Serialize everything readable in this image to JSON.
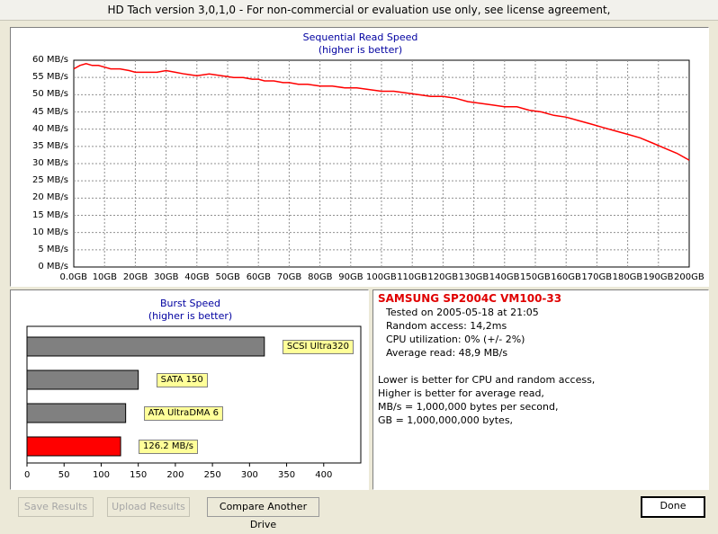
{
  "window": {
    "title": "HD Tach version 3,0,1,0  - For non-commercial or evaluation use only, see license agreement,"
  },
  "sequential": {
    "title": "Sequential Read Speed",
    "subtitle": "(higher is better)",
    "color": "#ff0000",
    "y_ticks": [
      "60 MB/s",
      "55 MB/s",
      "50 MB/s",
      "45 MB/s",
      "40 MB/s",
      "35 MB/s",
      "30 MB/s",
      "25 MB/s",
      "20 MB/s",
      "15 MB/s",
      "10 MB/s",
      "5 MB/s",
      "0 MB/s"
    ],
    "x_ticks": [
      "0.0GB",
      "10GB",
      "20GB",
      "30GB",
      "40GB",
      "50GB",
      "60GB",
      "70GB",
      "80GB",
      "90GB",
      "100GB",
      "110GB",
      "120GB",
      "130GB",
      "140GB",
      "150GB",
      "160GB",
      "170GB",
      "180GB",
      "190GB",
      "200GB"
    ]
  },
  "burst": {
    "title": "Burst Speed",
    "subtitle": "(higher is better)",
    "x_ticks": [
      "0",
      "50",
      "100",
      "150",
      "200",
      "250",
      "300",
      "350",
      "400"
    ]
  },
  "chart_data": [
    {
      "type": "line",
      "title": "Sequential Read Speed",
      "subtitle": "(higher is better)",
      "xlabel": "",
      "ylabel": "",
      "xlim": [
        0,
        200
      ],
      "ylim": [
        0,
        60
      ],
      "grid": true,
      "x_unit": "GB",
      "y_unit": "MB/s",
      "series": [
        {
          "color": "#ff0000",
          "x": [
            0,
            2,
            4,
            6,
            8,
            10,
            12,
            15,
            18,
            20,
            23,
            27,
            30,
            33,
            36,
            40,
            44,
            48,
            52,
            55,
            58,
            60,
            62,
            65,
            68,
            70,
            73,
            76,
            80,
            84,
            88,
            92,
            96,
            100,
            104,
            108,
            112,
            116,
            120,
            124,
            128,
            132,
            136,
            140,
            144,
            148,
            152,
            156,
            160,
            164,
            168,
            172,
            176,
            180,
            184,
            188,
            192,
            196,
            200
          ],
          "y": [
            57.5,
            58.5,
            59,
            58.5,
            58.5,
            58,
            57.5,
            57.5,
            57,
            56.5,
            56.5,
            56.5,
            57,
            56.5,
            56,
            55.5,
            56,
            55.5,
            55,
            55,
            54.5,
            54.5,
            54,
            54,
            53.5,
            53.5,
            53,
            53,
            52.5,
            52.5,
            52,
            52,
            51.5,
            51,
            51,
            50.5,
            50,
            49.5,
            49.5,
            49,
            48,
            47.5,
            47,
            46.5,
            46.5,
            45.5,
            45,
            44,
            43.5,
            42.5,
            41.5,
            40.5,
            39.5,
            38.5,
            37.5,
            36,
            34.5,
            33,
            31
          ]
        }
      ]
    },
    {
      "type": "bar",
      "title": "Burst Speed",
      "subtitle": "(higher is better)",
      "orientation": "horizontal",
      "xlim": [
        0,
        450
      ],
      "categories": [
        "SCSI Ultra320",
        "SATA 150",
        "ATA UltraDMA 6",
        "126.2 MB/s"
      ],
      "values": [
        320,
        150,
        133,
        126.2
      ],
      "colors": [
        "#808080",
        "#808080",
        "#808080",
        "#ff0000"
      ]
    }
  ],
  "info": {
    "drive": "SAMSUNG  SP2004C  VM100-33",
    "tested": "Tested on 2005-05-18 at 21:05",
    "random": "Random access: 14,2ms",
    "cpu": "CPU utilization: 0% (+/- 2%)",
    "avg": "Average read: 48,9 MB/s",
    "note1": "Lower is better for CPU and random access,",
    "note2": "Higher is better for average read,",
    "note3": "MB/s = 1,000,000 bytes per second,",
    "note4": "GB = 1,000,000,000 bytes,"
  },
  "buttons": {
    "save": "Save Results",
    "upload": "Upload Results",
    "compare": "Compare Another Drive",
    "done": "Done"
  }
}
